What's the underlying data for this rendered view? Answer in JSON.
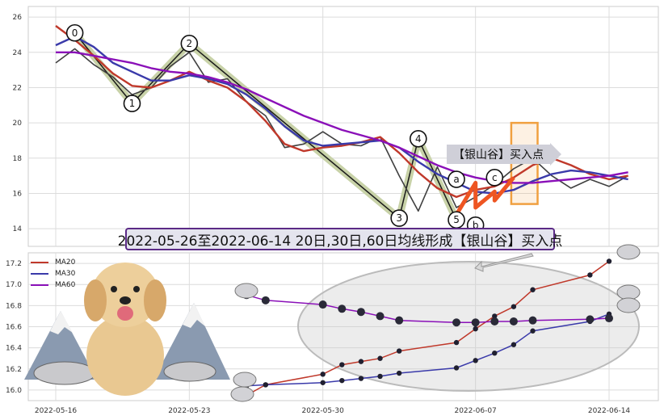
{
  "banner_text": "2022-05-26至2022-06-14 20日,30日,60日均线形成【银山谷】买入点",
  "callout_text": "【银山谷】买入点",
  "colors": {
    "price": "#404040",
    "ma20": "#c0392b",
    "ma30": "#3a3aaa",
    "ma60": "#8a10b8",
    "highlight_orange": "#f0a040",
    "zigzag_fill": "#c8d2a8",
    "banner_border": "#5b2a86"
  },
  "chart_data": [
    {
      "type": "line",
      "panel": "main",
      "title": "",
      "xlabel": "",
      "ylabel": "",
      "ylim": [
        13.0,
        26.6
      ],
      "yticks": [
        14,
        16,
        18,
        20,
        22,
        24,
        26
      ],
      "grid": true,
      "series": [
        {
          "name": "",
          "role": "price",
          "x": [
            "2022-05-16",
            "2022-05-17",
            "2022-05-18",
            "2022-05-19",
            "2022-05-20",
            "2022-05-21",
            "2022-05-22",
            "2022-05-23",
            "2022-05-24",
            "2022-05-25",
            "2022-05-26",
            "2022-05-27",
            "2022-05-28",
            "2022-05-29",
            "2022-05-30",
            "2022-05-31",
            "2022-06-01",
            "2022-06-02",
            "2022-06-03",
            "2022-06-04",
            "2022-06-05",
            "2022-06-06",
            "2022-06-07",
            "2022-06-08",
            "2022-06-09",
            "2022-06-10",
            "2022-06-11",
            "2022-06-12",
            "2022-06-13",
            "2022-06-14",
            "2022-06-15"
          ],
          "values": [
            23.4,
            24.2,
            23.3,
            22.6,
            21.6,
            22.0,
            23.2,
            24.0,
            22.3,
            22.5,
            21.2,
            20.4,
            18.6,
            18.8,
            19.5,
            18.8,
            18.7,
            19.2,
            17.0,
            15.0,
            17.5,
            15.2,
            15.8,
            16.5,
            17.4,
            18.0,
            17.0,
            16.3,
            16.8,
            16.4,
            17.0
          ]
        },
        {
          "name": "MA20",
          "x": [
            "2022-05-16",
            "2022-05-17",
            "2022-05-18",
            "2022-05-19",
            "2022-05-20",
            "2022-05-21",
            "2022-05-22",
            "2022-05-23",
            "2022-05-24",
            "2022-05-25",
            "2022-05-26",
            "2022-05-27",
            "2022-05-28",
            "2022-05-29",
            "2022-05-30",
            "2022-05-31",
            "2022-06-01",
            "2022-06-02",
            "2022-06-03",
            "2022-06-04",
            "2022-06-05",
            "2022-06-06",
            "2022-06-07",
            "2022-06-08",
            "2022-06-09",
            "2022-06-10",
            "2022-06-11",
            "2022-06-12",
            "2022-06-13",
            "2022-06-14",
            "2022-06-15"
          ],
          "values": [
            25.5,
            24.7,
            23.8,
            22.8,
            22.1,
            22.0,
            22.4,
            22.9,
            22.4,
            22.0,
            21.2,
            20.1,
            18.8,
            18.4,
            18.6,
            18.7,
            18.9,
            19.2,
            18.3,
            17.2,
            16.3,
            15.8,
            16.2,
            16.4,
            16.9,
            17.6,
            18.0,
            17.6,
            17.1,
            16.8,
            17.0
          ]
        },
        {
          "name": "MA30",
          "x": [
            "2022-05-16",
            "2022-05-17",
            "2022-05-18",
            "2022-05-19",
            "2022-05-20",
            "2022-05-21",
            "2022-05-22",
            "2022-05-23",
            "2022-05-24",
            "2022-05-25",
            "2022-05-26",
            "2022-05-27",
            "2022-05-28",
            "2022-05-29",
            "2022-05-30",
            "2022-05-31",
            "2022-06-01",
            "2022-06-02",
            "2022-06-03",
            "2022-06-04",
            "2022-06-05",
            "2022-06-06",
            "2022-06-07",
            "2022-06-08",
            "2022-06-09",
            "2022-06-10",
            "2022-06-11",
            "2022-06-12",
            "2022-06-13",
            "2022-06-14",
            "2022-06-15"
          ],
          "values": [
            24.4,
            24.9,
            24.3,
            23.4,
            22.9,
            22.4,
            22.4,
            22.7,
            22.5,
            22.2,
            21.6,
            20.8,
            19.8,
            19.0,
            18.7,
            18.8,
            18.9,
            19.0,
            18.6,
            17.8,
            17.1,
            16.6,
            16.1,
            16.0,
            16.2,
            16.7,
            17.1,
            17.3,
            17.2,
            17.0,
            16.8
          ]
        },
        {
          "name": "MA60",
          "x": [
            "2022-05-16",
            "2022-05-17",
            "2022-05-18",
            "2022-05-19",
            "2022-05-20",
            "2022-05-21",
            "2022-05-22",
            "2022-05-23",
            "2022-05-24",
            "2022-05-25",
            "2022-05-26",
            "2022-05-27",
            "2022-05-28",
            "2022-05-29",
            "2022-05-30",
            "2022-05-31",
            "2022-06-01",
            "2022-06-02",
            "2022-06-03",
            "2022-06-04",
            "2022-06-05",
            "2022-06-06",
            "2022-06-07",
            "2022-06-08",
            "2022-06-09",
            "2022-06-10",
            "2022-06-11",
            "2022-06-12",
            "2022-06-13",
            "2022-06-14",
            "2022-06-15"
          ],
          "values": [
            24.0,
            24.0,
            23.8,
            23.6,
            23.4,
            23.1,
            22.9,
            22.8,
            22.6,
            22.3,
            21.9,
            21.4,
            20.9,
            20.4,
            20.0,
            19.6,
            19.3,
            19.0,
            18.6,
            18.1,
            17.6,
            17.2,
            16.9,
            16.7,
            16.6,
            16.6,
            16.7,
            16.8,
            16.9,
            17.0,
            17.2
          ]
        }
      ],
      "annotations": [
        {
          "label": "0",
          "x": "2022-05-17",
          "y": 25.1
        },
        {
          "label": "1",
          "x": "2022-05-20",
          "y": 21.1
        },
        {
          "label": "2",
          "x": "2022-05-23",
          "y": 24.5
        },
        {
          "label": "3",
          "x": "2022-06-03",
          "y": 14.6
        },
        {
          "label": "4",
          "x": "2022-06-04",
          "y": 19.1
        },
        {
          "label": "5",
          "x": "2022-06-06",
          "y": 14.5
        },
        {
          "label": "a",
          "x": "2022-06-06",
          "y": 16.8
        },
        {
          "label": "b",
          "x": "2022-06-07",
          "y": 14.2
        },
        {
          "label": "c",
          "x": "2022-06-08",
          "y": 16.9
        }
      ]
    },
    {
      "type": "line",
      "panel": "lower",
      "title": "",
      "xlabel": "",
      "ylabel": "",
      "ylim": [
        15.9,
        17.3
      ],
      "yticks": [
        16.0,
        16.2,
        16.4,
        16.6,
        16.8,
        17.0,
        17.2
      ],
      "xticks": [
        "2022-05-16",
        "2022-05-23",
        "2022-05-30",
        "2022-06-07",
        "2022-06-14"
      ],
      "grid": true,
      "legend": "top-left",
      "x": [
        "2022-05-26",
        "2022-05-27",
        "2022-05-30",
        "2022-05-31",
        "2022-06-01",
        "2022-06-02",
        "2022-06-03",
        "2022-06-06",
        "2022-06-07",
        "2022-06-08",
        "2022-06-09",
        "2022-06-10",
        "2022-06-13",
        "2022-06-14"
      ],
      "series": [
        {
          "name": "MA20",
          "values": [
            15.95,
            16.05,
            16.15,
            16.24,
            16.27,
            16.3,
            16.37,
            16.45,
            16.58,
            16.7,
            16.79,
            16.95,
            17.09,
            17.22
          ]
        },
        {
          "name": "MA30",
          "values": [
            16.04,
            16.05,
            16.07,
            16.09,
            16.11,
            16.13,
            16.16,
            16.21,
            16.28,
            16.35,
            16.43,
            16.56,
            16.65,
            16.72
          ]
        },
        {
          "name": "MA60",
          "values": [
            16.9,
            16.85,
            16.81,
            16.77,
            16.74,
            16.7,
            16.66,
            16.64,
            16.64,
            16.65,
            16.65,
            16.66,
            16.67,
            16.68
          ]
        }
      ]
    }
  ]
}
